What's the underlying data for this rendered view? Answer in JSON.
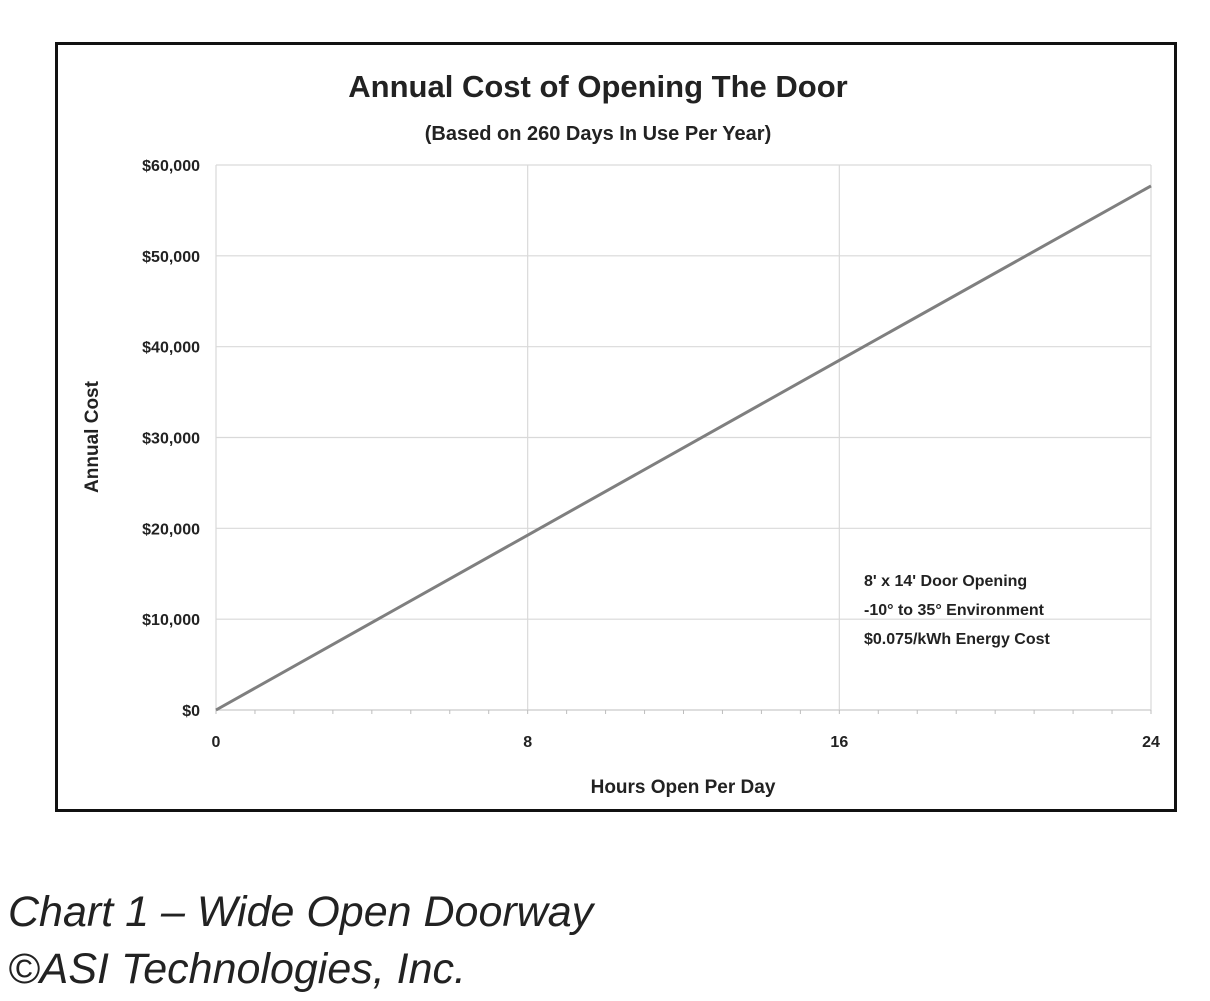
{
  "chart_data": {
    "type": "line",
    "title": "Annual Cost of Opening The Door",
    "subtitle": "(Based on 260 Days In Use Per Year)",
    "xlabel": "Hours Open Per Day",
    "ylabel": "Annual Cost",
    "xlim": [
      0,
      24
    ],
    "ylim": [
      0,
      60000
    ],
    "x_ticks": [
      0,
      8,
      16,
      24
    ],
    "x_tick_labels": [
      "0",
      "8",
      "16",
      "24"
    ],
    "y_ticks": [
      0,
      10000,
      20000,
      30000,
      40000,
      50000,
      60000
    ],
    "y_tick_labels": [
      "$0",
      "$10,000",
      "$20,000",
      "$30,000",
      "$40,000",
      "$50,000",
      "$60,000"
    ],
    "grid": true,
    "legend": "none",
    "series": [
      {
        "values": [
          [
            0,
            0
          ],
          [
            8,
            19250
          ],
          [
            16,
            38500
          ],
          [
            24,
            57700
          ]
        ],
        "color": "#7f7f7f"
      }
    ],
    "annotation_lines": [
      "8' x 14' Door Opening",
      "-10° to 35° Environment",
      "$0.075/kWh Energy Cost"
    ]
  },
  "caption": {
    "line1": "Chart 1 – Wide Open Doorway",
    "line2": "©ASI Technologies, Inc."
  }
}
